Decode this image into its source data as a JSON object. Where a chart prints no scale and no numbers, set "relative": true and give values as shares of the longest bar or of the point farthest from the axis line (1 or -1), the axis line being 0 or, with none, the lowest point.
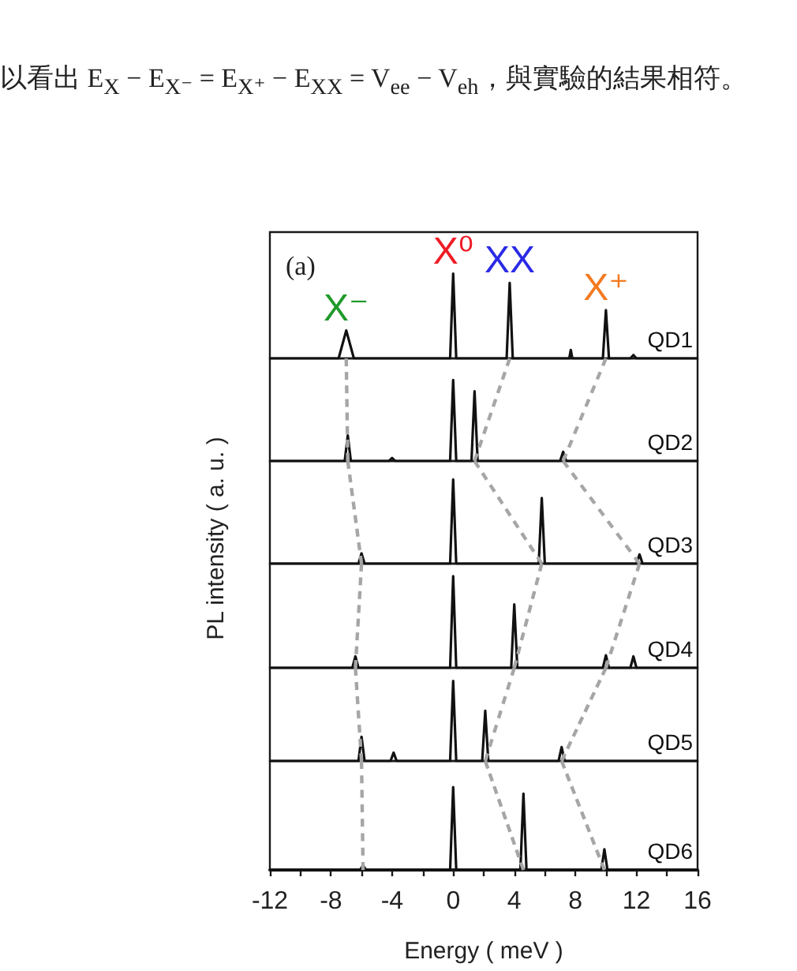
{
  "chart_data": [
    {
      "type": "line",
      "title": "(a)",
      "relative": true,
      "xlim": [
        -12,
        16
      ],
      "tick_labels": false,
      "annotations": [
        "以看出 E$_{X}$ − E$_{X⁻}$ = E$_{X⁺}$ − E$_{XX}$ = V$_{ee}$ − V$_{eh}$，與實驗的結果相符。",
        {
          "text": "X⁻",
          "x": -7.0,
          "y": 0.33
        },
        {
          "text": "X⁰",
          "x": 0,
          "y": 1
        },
        {
          "text": "XX",
          "x": 3.7,
          "y": 0.89
        },
        {
          "text": "X⁺",
          "x": 10.0,
          "y": 0.57
        }
      ],
      "series": [
        {
          "name": "QD1",
          "color": "#111111",
          "x": [
            -12,
            -7.5,
            -7.0,
            -6.5,
            -0.2,
            0,
            0.2,
            3.5,
            3.7,
            3.9,
            7.6,
            7.7,
            7.8,
            9.8,
            10.0,
            10.2,
            11.6,
            11.8,
            12.0,
            16
          ],
          "values": [
            0,
            0,
            0.33,
            0,
            0,
            1,
            0,
            0,
            0.89,
            0,
            0,
            0.1,
            0,
            0,
            0.57,
            0,
            0,
            0.04,
            0,
            0
          ]
        }
      ]
    },
    {
      "type": "line",
      "relative": true,
      "xlim": [
        -12,
        16
      ],
      "tick_labels": false,
      "series": [
        {
          "name": "QD2",
          "color": "#111111",
          "x": [
            -12,
            -7.1,
            -6.9,
            -6.7,
            -4.2,
            -4.0,
            -3.8,
            -0.2,
            0,
            0.2,
            1.2,
            1.4,
            1.6,
            7.0,
            7.2,
            7.4,
            16
          ],
          "values": [
            0,
            0,
            0.25,
            0,
            0,
            0.03,
            0,
            0,
            0.79,
            0,
            0,
            0.68,
            0,
            0,
            0.09,
            0,
            0
          ]
        },
        {
          "color": "#a6a6a6",
          "line_style": "dashed",
          "x": [
            -7.0,
            -6.9
          ],
          "values": [
            1,
            0
          ]
        },
        {
          "color": "#a6a6a6",
          "line_style": "dashed",
          "x": [
            3.7,
            1.4
          ],
          "values": [
            1,
            0
          ]
        },
        {
          "color": "#a6a6a6",
          "line_style": "dashed",
          "x": [
            10.0,
            7.2
          ],
          "values": [
            1,
            0
          ]
        }
      ]
    },
    {
      "type": "line",
      "relative": true,
      "xlim": [
        -12,
        16
      ],
      "tick_labels": false,
      "ylabel": "PL intensity ( a. u. )",
      "series": [
        {
          "name": "QD3",
          "color": "#111111",
          "x": [
            -12,
            -6.2,
            -6.0,
            -5.8,
            -0.2,
            0,
            0.2,
            5.6,
            5.8,
            6.0,
            12.0,
            12.2,
            12.4,
            16
          ],
          "values": [
            0,
            0,
            0.1,
            0,
            0,
            0.82,
            0,
            0,
            0.64,
            0,
            0,
            0.09,
            0,
            0
          ]
        },
        {
          "color": "#a6a6a6",
          "line_style": "dashed",
          "x": [
            -6.9,
            -6.0
          ],
          "values": [
            1,
            0
          ]
        },
        {
          "color": "#a6a6a6",
          "line_style": "dashed",
          "x": [
            1.4,
            5.8
          ],
          "values": [
            1,
            0
          ]
        },
        {
          "color": "#a6a6a6",
          "line_style": "dashed",
          "x": [
            7.2,
            12.2
          ],
          "values": [
            1,
            0
          ]
        }
      ]
    },
    {
      "type": "line",
      "relative": true,
      "xlim": [
        -12,
        16
      ],
      "tick_labels": false,
      "series": [
        {
          "name": "QD4",
          "color": "#111111",
          "x": [
            -12,
            -6.6,
            -6.4,
            -6.2,
            -0.2,
            0,
            0.2,
            3.8,
            4.0,
            4.2,
            9.8,
            10.0,
            10.2,
            11.6,
            11.8,
            12.0,
            16
          ],
          "values": [
            0,
            0,
            0.11,
            0,
            0,
            0.88,
            0,
            0,
            0.61,
            0,
            0,
            0.12,
            0,
            0,
            0.11,
            0,
            0
          ]
        },
        {
          "color": "#a6a6a6",
          "line_style": "dashed",
          "x": [
            -6.0,
            -6.4
          ],
          "values": [
            1,
            0
          ]
        },
        {
          "color": "#a6a6a6",
          "line_style": "dashed",
          "x": [
            5.8,
            4.0
          ],
          "values": [
            1,
            0
          ]
        },
        {
          "color": "#a6a6a6",
          "line_style": "dashed",
          "x": [
            12.2,
            10.0
          ],
          "values": [
            1,
            0
          ]
        }
      ]
    },
    {
      "type": "line",
      "relative": true,
      "xlim": [
        -12,
        16
      ],
      "tick_labels": false,
      "series": [
        {
          "name": "QD5",
          "color": "#111111",
          "x": [
            -12,
            -6.2,
            -6.0,
            -5.8,
            -4.1,
            -3.9,
            -3.7,
            -0.2,
            0,
            0.2,
            1.9,
            2.1,
            2.3,
            6.9,
            7.1,
            7.3,
            16
          ],
          "values": [
            0,
            0,
            0.26,
            0,
            0,
            0.09,
            0,
            0,
            0.86,
            0,
            0,
            0.54,
            0,
            0,
            0.15,
            0,
            0
          ]
        },
        {
          "color": "#a6a6a6",
          "line_style": "dashed",
          "x": [
            -6.4,
            -6.0
          ],
          "values": [
            1,
            0
          ]
        },
        {
          "color": "#a6a6a6",
          "line_style": "dashed",
          "x": [
            4.0,
            2.1
          ],
          "values": [
            1,
            0
          ]
        },
        {
          "color": "#a6a6a6",
          "line_style": "dashed",
          "x": [
            10.0,
            7.1
          ],
          "values": [
            1,
            0
          ]
        }
      ]
    },
    {
      "type": "line",
      "relative": true,
      "xlim": [
        -12,
        16
      ],
      "tick_labels": "x",
      "xlabel": "Energy ( meV )",
      "xticks": [
        -12,
        {
          "value": -10,
          "label": null
        },
        -8,
        {
          "value": -6,
          "label": null
        },
        -4,
        {
          "value": -2,
          "label": null
        },
        0,
        {
          "value": 2,
          "label": null
        },
        4,
        {
          "value": 6,
          "label": null
        },
        8,
        {
          "value": 10,
          "label": null
        },
        12,
        {
          "value": 14,
          "label": null
        },
        16
      ],
      "series": [
        {
          "name": "QD6",
          "color": "#111111",
          "x": [
            -12,
            -6.1,
            -5.9,
            -5.7,
            -0.2,
            0,
            0.2,
            4.4,
            4.6,
            4.8,
            9.7,
            9.9,
            10.1,
            16
          ],
          "values": [
            0,
            0,
            0.04,
            0,
            0,
            0.76,
            0,
            0,
            0.7,
            0,
            0,
            0.19,
            0,
            0
          ]
        },
        {
          "color": "#a6a6a6",
          "line_style": "dashed",
          "x": [
            -6.0,
            -5.9
          ],
          "values": [
            1,
            0
          ]
        },
        {
          "color": "#a6a6a6",
          "line_style": "dashed",
          "x": [
            2.1,
            4.6
          ],
          "values": [
            1,
            0
          ]
        },
        {
          "color": "#a6a6a6",
          "line_style": "dashed",
          "x": [
            7.1,
            9.9
          ],
          "values": [
            1,
            0
          ]
        }
      ]
    }
  ]
}
